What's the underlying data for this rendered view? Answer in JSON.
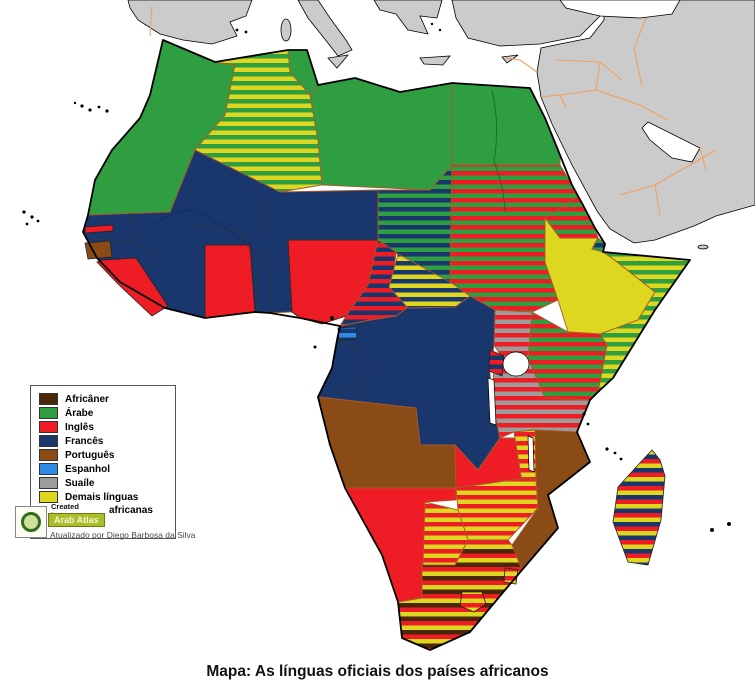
{
  "caption": "Mapa: As línguas oficiais dos países africanos",
  "legend": {
    "items": [
      {
        "id": "africaner",
        "label": "Africâner",
        "color": "#4a2708"
      },
      {
        "id": "arabe",
        "label": "Árabe",
        "color": "#2f9e41"
      },
      {
        "id": "ingles",
        "label": "Inglês",
        "color": "#ee1c24"
      },
      {
        "id": "frances",
        "label": "Francês",
        "color": "#19376d"
      },
      {
        "id": "portugues",
        "label": "Português",
        "color": "#8a4b16"
      },
      {
        "id": "espanhol",
        "label": "Espanhol",
        "color": "#2e8ae6"
      },
      {
        "id": "suaile",
        "label": "Suaíle",
        "color": "#9c9c9c"
      },
      {
        "id": "demais",
        "label": "Demais línguas",
        "label_line2": "africanas",
        "color": "#ddd71f"
      }
    ],
    "credit_created_by": "Created by",
    "credit_brand": "Arab Atlas",
    "credit_updated": "Atualizado por Diego Barbosa da Silva"
  },
  "map": {
    "ocean_color": "#ffffff",
    "foreign_land_color": "#cbcbcb",
    "foreign_border_color": "#f2a05e",
    "coastline_color": "#000000",
    "regions": [
      {
        "id": "morocco_ws_mauritania",
        "languages": [
          "arabe"
        ]
      },
      {
        "id": "tunisia",
        "languages": [
          "arabe"
        ]
      },
      {
        "id": "algeria",
        "languages": [
          "arabe",
          "demais"
        ]
      },
      {
        "id": "libya",
        "languages": [
          "arabe"
        ]
      },
      {
        "id": "egypt",
        "languages": [
          "arabe"
        ]
      },
      {
        "id": "west_africa_francophone",
        "languages": [
          "frances"
        ]
      },
      {
        "id": "gambia",
        "languages": [
          "ingles"
        ]
      },
      {
        "id": "guinea_bissau",
        "languages": [
          "portugues"
        ]
      },
      {
        "id": "sierra_leone_liberia",
        "languages": [
          "ingles"
        ]
      },
      {
        "id": "ghana",
        "languages": [
          "ingles"
        ]
      },
      {
        "id": "nigeria",
        "languages": [
          "ingles"
        ]
      },
      {
        "id": "cameroon",
        "languages": [
          "ingles",
          "frances"
        ]
      },
      {
        "id": "chad",
        "languages": [
          "frances",
          "arabe"
        ]
      },
      {
        "id": "central_african_republic",
        "languages": [
          "frances",
          "demais"
        ]
      },
      {
        "id": "sudan",
        "languages": [
          "ingles",
          "arabe"
        ]
      },
      {
        "id": "eritrea",
        "languages": [
          "ingles",
          "arabe"
        ]
      },
      {
        "id": "djibouti",
        "languages": [
          "frances",
          "arabe"
        ]
      },
      {
        "id": "ethiopia",
        "languages": [
          "demais"
        ]
      },
      {
        "id": "somalia",
        "languages": [
          "arabe",
          "demais"
        ]
      },
      {
        "id": "kenya",
        "languages": [
          "ingles",
          "arabe"
        ]
      },
      {
        "id": "uganda",
        "languages": [
          "ingles",
          "suaile"
        ]
      },
      {
        "id": "rwanda_burundi",
        "languages": [
          "ingles",
          "frances"
        ]
      },
      {
        "id": "tanzania",
        "languages": [
          "ingles",
          "suaile"
        ]
      },
      {
        "id": "central_africa_francophone",
        "languages": [
          "frances"
        ]
      },
      {
        "id": "equatorial_guinea",
        "languages": [
          "espanhol",
          "frances"
        ]
      },
      {
        "id": "angola",
        "languages": [
          "portugues"
        ]
      },
      {
        "id": "zambia",
        "languages": [
          "ingles"
        ]
      },
      {
        "id": "malawi",
        "languages": [
          "ingles",
          "demais"
        ]
      },
      {
        "id": "mozambique",
        "languages": [
          "portugues"
        ]
      },
      {
        "id": "zimbabwe",
        "languages": [
          "ingles",
          "demais"
        ]
      },
      {
        "id": "botswana",
        "languages": [
          "ingles",
          "demais"
        ]
      },
      {
        "id": "namibia",
        "languages": [
          "ingles"
        ]
      },
      {
        "id": "south_africa",
        "languages": [
          "ingles",
          "demais",
          "africaner"
        ]
      },
      {
        "id": "lesotho",
        "languages": [
          "ingles",
          "demais"
        ]
      },
      {
        "id": "swaziland",
        "languages": [
          "ingles",
          "demais"
        ]
      },
      {
        "id": "madagascar",
        "languages": [
          "ingles",
          "demais",
          "frances"
        ]
      }
    ]
  }
}
